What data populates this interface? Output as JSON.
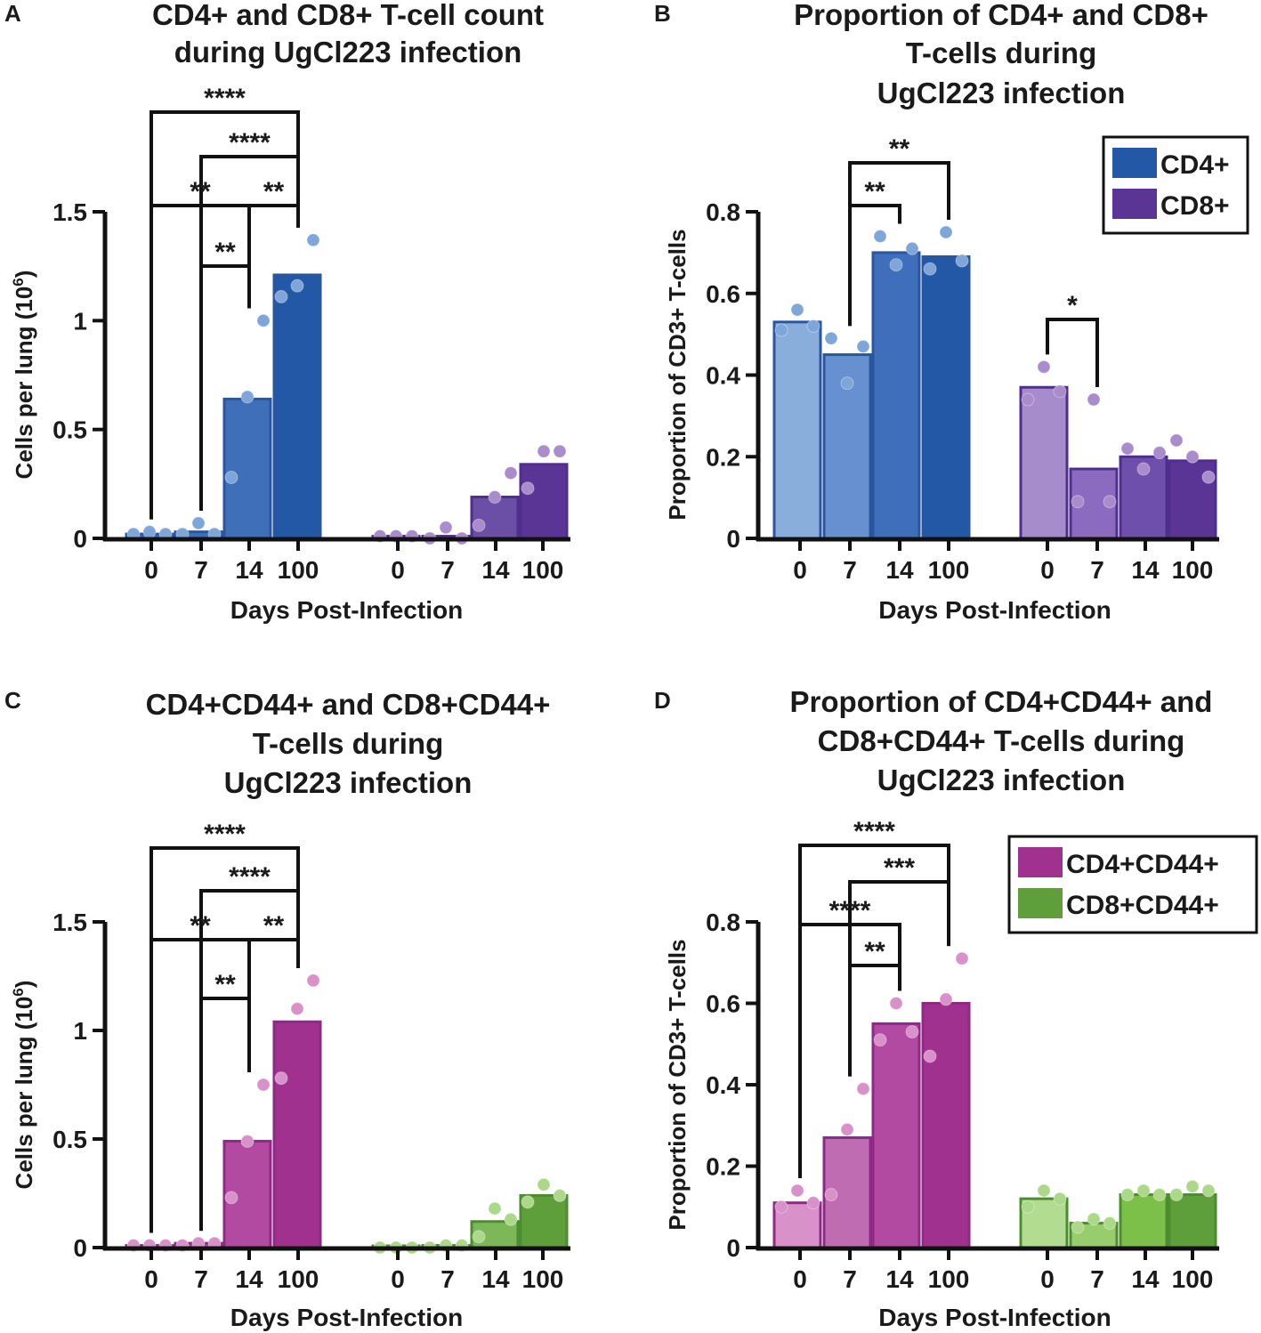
{
  "figure": {
    "panels": [
      {
        "id": "A",
        "label": "A",
        "title_lines": [
          "CD4+ and CD8+ T-cell count",
          "during UgCl223 infection"
        ],
        "xlabel": "Days Post-Infection",
        "ylabel": "Cells per lung (10",
        "ylabel_sup": "6",
        "ylabel_tail": ")",
        "yticks": [
          "0",
          "0.5",
          "1",
          "1.5"
        ],
        "xticks": [
          "0",
          "7",
          "14",
          "100",
          "0",
          "7",
          "14",
          "100"
        ],
        "legend": null,
        "brackets": [
          {
            "stars": "****",
            "from": "0",
            "to": "100"
          },
          {
            "stars": "****",
            "from": "7",
            "to": "100"
          },
          {
            "stars": "**",
            "from": "0",
            "to": "14"
          },
          {
            "stars": "**",
            "from": "14",
            "to": "100"
          },
          {
            "stars": "**",
            "from": "7",
            "to": "14"
          }
        ]
      },
      {
        "id": "B",
        "label": "B",
        "title_lines": [
          "Proportion of CD4+ and CD8+",
          "T-cells during",
          "UgCl223 infection"
        ],
        "xlabel": "Days Post-Infection",
        "ylabel": "Proportion of CD3+ T-cells",
        "yticks": [
          "0",
          "0.2",
          "0.4",
          "0.6",
          "0.8"
        ],
        "xticks": [
          "0",
          "7",
          "14",
          "100",
          "0",
          "7",
          "14",
          "100"
        ],
        "legend": [
          "CD4+",
          "CD8+"
        ],
        "brackets": [
          {
            "stars": "**",
            "from": "7",
            "to": "100"
          },
          {
            "stars": "**",
            "from": "7",
            "to": "14"
          },
          {
            "stars": "*",
            "from": "0",
            "to": "7",
            "group": "CD8+"
          }
        ]
      },
      {
        "id": "C",
        "label": "C",
        "title_lines": [
          "CD4+CD44+ and CD8+CD44+",
          "T-cells during",
          "UgCl223 infection"
        ],
        "xlabel": "Days Post-Infection",
        "ylabel": "Cells per lung (10",
        "ylabel_sup": "6",
        "ylabel_tail": ")",
        "yticks": [
          "0",
          "0.5",
          "1",
          "1.5"
        ],
        "xticks": [
          "0",
          "7",
          "14",
          "100",
          "0",
          "7",
          "14",
          "100"
        ],
        "legend": null,
        "brackets": [
          {
            "stars": "****",
            "from": "0",
            "to": "100"
          },
          {
            "stars": "****",
            "from": "7",
            "to": "100"
          },
          {
            "stars": "**",
            "from": "0",
            "to": "14"
          },
          {
            "stars": "**",
            "from": "14",
            "to": "100"
          },
          {
            "stars": "**",
            "from": "7",
            "to": "14"
          }
        ]
      },
      {
        "id": "D",
        "label": "D",
        "title_lines": [
          "Proportion of CD4+CD44+ and",
          "CD8+CD44+ T-cells during",
          "UgCl223 infection"
        ],
        "xlabel": "Days Post-Infection",
        "ylabel": "Proportion of CD3+ T-cells",
        "yticks": [
          "0",
          "0.2",
          "0.4",
          "0.6",
          "0.8"
        ],
        "xticks": [
          "0",
          "7",
          "14",
          "100",
          "0",
          "7",
          "14",
          "100"
        ],
        "legend": [
          "CD4+CD44+",
          "CD8+CD44+"
        ],
        "brackets": [
          {
            "stars": "****",
            "from": "0",
            "to": "100"
          },
          {
            "stars": "***",
            "from": "7",
            "to": "100"
          },
          {
            "stars": "****",
            "from": "0",
            "to": "14"
          },
          {
            "stars": "**",
            "from": "7",
            "to": "14"
          }
        ]
      }
    ]
  },
  "chart_data": [
    {
      "panel": "A",
      "type": "bar",
      "title": "CD4+ and CD8+ T-cell count during UgCl223 infection",
      "xlabel": "Days Post-Infection",
      "ylabel": "Cells per lung (10^6)",
      "ylim": [
        0,
        1.5
      ],
      "categories": [
        "0",
        "7",
        "14",
        "100"
      ],
      "series": [
        {
          "name": "CD4+",
          "values": [
            0.02,
            0.03,
            0.64,
            1.21
          ],
          "points": [
            [
              0.02,
              0.03,
              0.02
            ],
            [
              0.02,
              0.07,
              0.02
            ],
            [
              0.28,
              0.65,
              1.0
            ],
            [
              1.11,
              1.16,
              1.37
            ]
          ],
          "colors": [
            "#3f6fb8",
            "#3f6fb8",
            "#3f6fb8",
            "#2358a6"
          ],
          "edge": "#2a56a0",
          "dot": "#7ea6d9"
        },
        {
          "name": "CD8+",
          "values": [
            0.01,
            0.01,
            0.19,
            0.34
          ],
          "points": [
            [
              0.01,
              0.01,
              0.01
            ],
            [
              0.0,
              0.05,
              0.0
            ],
            [
              0.06,
              0.19,
              0.3
            ],
            [
              0.23,
              0.4,
              0.4
            ]
          ],
          "colors": [
            "#6b4fa6",
            "#6b4fa6",
            "#6b4fa6",
            "#5a3596"
          ],
          "edge": "#4f2f8e",
          "dot": "#a98ccc"
        }
      ]
    },
    {
      "panel": "B",
      "type": "bar",
      "title": "Proportion of CD4+ and CD8+ T-cells during UgCl223 infection",
      "xlabel": "Days Post-Infection",
      "ylabel": "Proportion of CD3+ T-cells",
      "ylim": [
        0,
        0.8
      ],
      "categories": [
        "0",
        "7",
        "14",
        "100"
      ],
      "series": [
        {
          "name": "CD4+",
          "values": [
            0.53,
            0.45,
            0.7,
            0.69
          ],
          "points": [
            [
              0.51,
              0.56,
              0.52
            ],
            [
              0.49,
              0.38,
              0.47
            ],
            [
              0.74,
              0.67,
              0.71
            ],
            [
              0.66,
              0.75,
              0.68
            ]
          ],
          "colors": [
            "#8aaedc",
            "#6690cf",
            "#3f6fbb",
            "#2358a6"
          ],
          "edge": "#2a56a0",
          "dot": "#7ea6d9"
        },
        {
          "name": "CD8+",
          "values": [
            0.37,
            0.17,
            0.2,
            0.19
          ],
          "points": [
            [
              0.34,
              0.42,
              0.36
            ],
            [
              0.09,
              0.34,
              0.09
            ],
            [
              0.22,
              0.17,
              0.21
            ],
            [
              0.24,
              0.2,
              0.15
            ]
          ],
          "colors": [
            "#a78ccc",
            "#8a6bbf",
            "#6e4fab",
            "#5a3596"
          ],
          "edge": "#4f2f8e",
          "dot": "#a98ccc"
        }
      ]
    },
    {
      "panel": "C",
      "type": "bar",
      "title": "CD4+CD44+ and CD8+CD44+ T-cells during UgCl223 infection",
      "xlabel": "Days Post-Infection",
      "ylabel": "Cells per lung (10^6)",
      "ylim": [
        0,
        1.5
      ],
      "categories": [
        "0",
        "7",
        "14",
        "100"
      ],
      "series": [
        {
          "name": "CD4+CD44+",
          "values": [
            0.01,
            0.02,
            0.49,
            1.04
          ],
          "points": [
            [
              0.01,
              0.01,
              0.01
            ],
            [
              0.01,
              0.02,
              0.02
            ],
            [
              0.23,
              0.49,
              0.75
            ],
            [
              0.78,
              1.1,
              1.23
            ]
          ],
          "colors": [
            "#b24aa2",
            "#b24aa2",
            "#b24aa2",
            "#a1318f"
          ],
          "edge": "#8e2a85",
          "dot": "#d891c9"
        },
        {
          "name": "CD8+CD44+",
          "values": [
            0.0,
            0.01,
            0.12,
            0.24
          ],
          "points": [
            [
              0.0,
              0.0,
              0.0
            ],
            [
              0.0,
              0.01,
              0.01
            ],
            [
              0.05,
              0.18,
              0.13
            ],
            [
              0.21,
              0.29,
              0.24
            ]
          ],
          "colors": [
            "#7cb858",
            "#7cb858",
            "#7cb858",
            "#5e9f3b"
          ],
          "edge": "#4c8e2f",
          "dot": "#acd88a"
        }
      ]
    },
    {
      "panel": "D",
      "type": "bar",
      "title": "Proportion of CD4+CD44+ and CD8+CD44+ T-cells during UgCl223 infection",
      "xlabel": "Days Post-Infection",
      "ylabel": "Proportion of CD3+ T-cells",
      "ylim": [
        0,
        0.8
      ],
      "categories": [
        "0",
        "7",
        "14",
        "100"
      ],
      "series": [
        {
          "name": "CD4+CD44+",
          "values": [
            0.11,
            0.27,
            0.55,
            0.6
          ],
          "points": [
            [
              0.1,
              0.14,
              0.11
            ],
            [
              0.13,
              0.29,
              0.39
            ],
            [
              0.51,
              0.6,
              0.53
            ],
            [
              0.47,
              0.61,
              0.71
            ]
          ],
          "colors": [
            "#d891c9",
            "#c06cb2",
            "#b24aa2",
            "#a1318f"
          ],
          "edge": "#8e2a85",
          "dot": "#d891c9"
        },
        {
          "name": "CD8+CD44+",
          "values": [
            0.12,
            0.06,
            0.13,
            0.13
          ],
          "points": [
            [
              0.1,
              0.14,
              0.12
            ],
            [
              0.05,
              0.07,
              0.06
            ],
            [
              0.13,
              0.14,
              0.13
            ],
            [
              0.13,
              0.15,
              0.14
            ]
          ],
          "colors": [
            "#b2dc90",
            "#97cd6c",
            "#7cc04a",
            "#5e9f3b"
          ],
          "edge": "#4c8e2f",
          "dot": "#acd88a"
        }
      ]
    }
  ]
}
